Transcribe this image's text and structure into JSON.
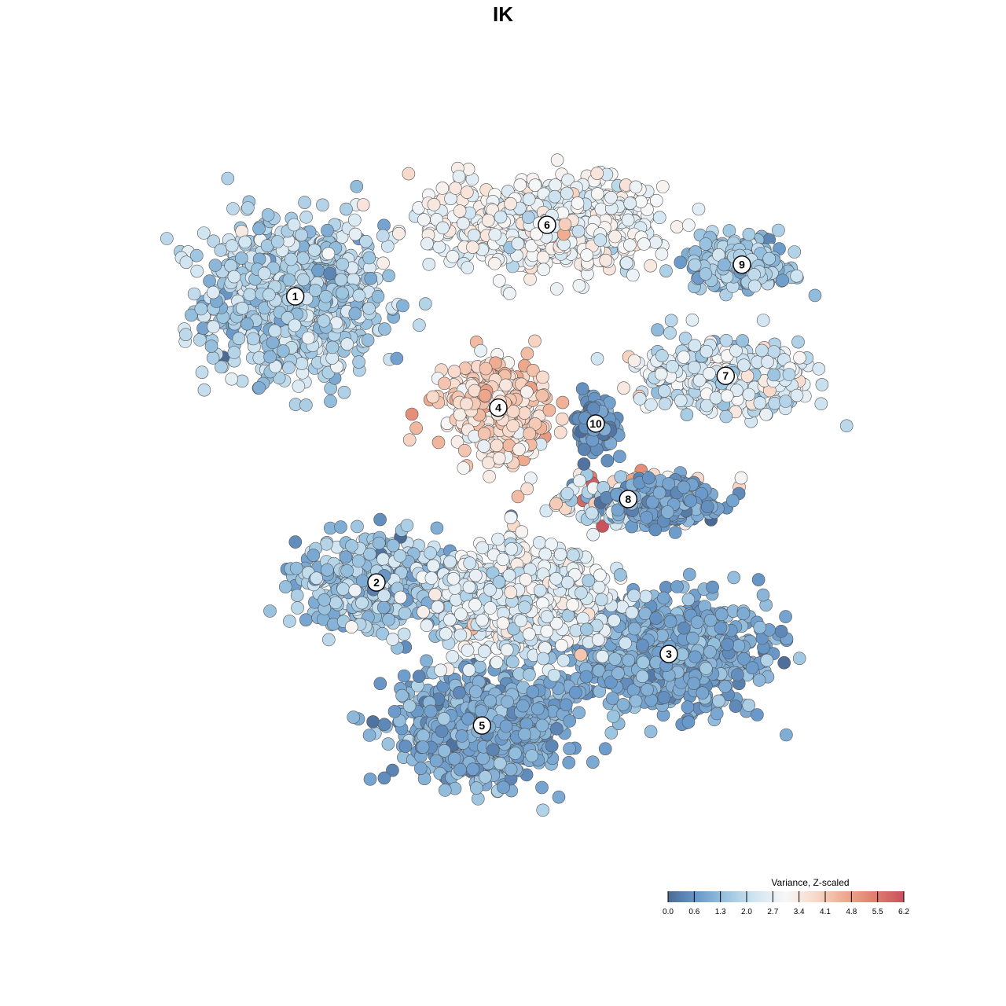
{
  "chart_data": {
    "type": "scatter",
    "title": "IK",
    "xlabel": "",
    "ylabel": "",
    "grid": false,
    "axes_visible": false,
    "legend_placement": "bottom-right",
    "colorbar": {
      "title": "Variance, Z-scaled",
      "min": 0.0,
      "max": 6.2,
      "ticks": [
        "0.0",
        "0.6",
        "1.3",
        "2.0",
        "2.7",
        "3.4",
        "4.1",
        "4.8",
        "5.5",
        "6.2"
      ],
      "colors": [
        "#4a6a95",
        "#6a9acb",
        "#9cc5e0",
        "#d3e6f2",
        "#f7f7f7",
        "#f8d9c9",
        "#eeaa8e",
        "#e07f6e",
        "#c9505c"
      ]
    },
    "x_range": [
      -45,
      45
    ],
    "y_range": [
      -45,
      45
    ],
    "clusters": [
      {
        "label": "1",
        "x": -28.0,
        "y": 26.0,
        "sx": 10.0,
        "sy": 9.0,
        "n": 900,
        "mean": 1.9,
        "sd": 0.45
      },
      {
        "label": "2",
        "x": -18.0,
        "y": -10.0,
        "sx": 9.0,
        "sy": 5.0,
        "n": 420,
        "mean": 1.6,
        "sd": 0.55
      },
      {
        "label": "3",
        "x": 18.0,
        "y": -19.0,
        "sx": 11.0,
        "sy": 6.0,
        "n": 820,
        "mean": 1.05,
        "sd": 0.3
      },
      {
        "label": "4",
        "x": -3.0,
        "y": 12.0,
        "sx": 5.5,
        "sy": 5.0,
        "n": 420,
        "mean": 3.8,
        "sd": 0.5
      },
      {
        "label": "5",
        "x": -5.0,
        "y": -28.0,
        "sx": 9.0,
        "sy": 6.0,
        "n": 850,
        "mean": 1.1,
        "sd": 0.35
      },
      {
        "label": "6",
        "x": 3.0,
        "y": 35.0,
        "sx": 12.0,
        "sy": 5.0,
        "n": 700,
        "mean": 2.9,
        "sd": 0.45
      },
      {
        "label": "7",
        "x": 25.0,
        "y": 16.0,
        "sx": 10.0,
        "sy": 4.0,
        "n": 380,
        "mean": 2.4,
        "sd": 0.5
      },
      {
        "label": "8",
        "x": 13.0,
        "y": 0.5,
        "sx": 8.0,
        "sy": 2.5,
        "n": 220,
        "mean": 2.7,
        "sd": 1.4
      },
      {
        "label": "9",
        "x": 27.0,
        "y": 30.0,
        "sx": 6.0,
        "sy": 3.0,
        "n": 200,
        "mean": 1.7,
        "sd": 0.4
      },
      {
        "label": "10",
        "x": 9.0,
        "y": 10.0,
        "sx": 2.2,
        "sy": 3.0,
        "n": 140,
        "mean": 0.7,
        "sd": 0.35
      },
      {
        "label": "",
        "x": 0.0,
        "y": -12.0,
        "sx": 9.0,
        "sy": 6.0,
        "n": 750,
        "mean": 2.6,
        "sd": 0.5
      },
      {
        "label": "",
        "x": 18.0,
        "y": 0.0,
        "sx": 5.0,
        "sy": 2.5,
        "n": 260,
        "mean": 0.9,
        "sd": 0.3
      }
    ],
    "point_count_note_excluded": true
  }
}
